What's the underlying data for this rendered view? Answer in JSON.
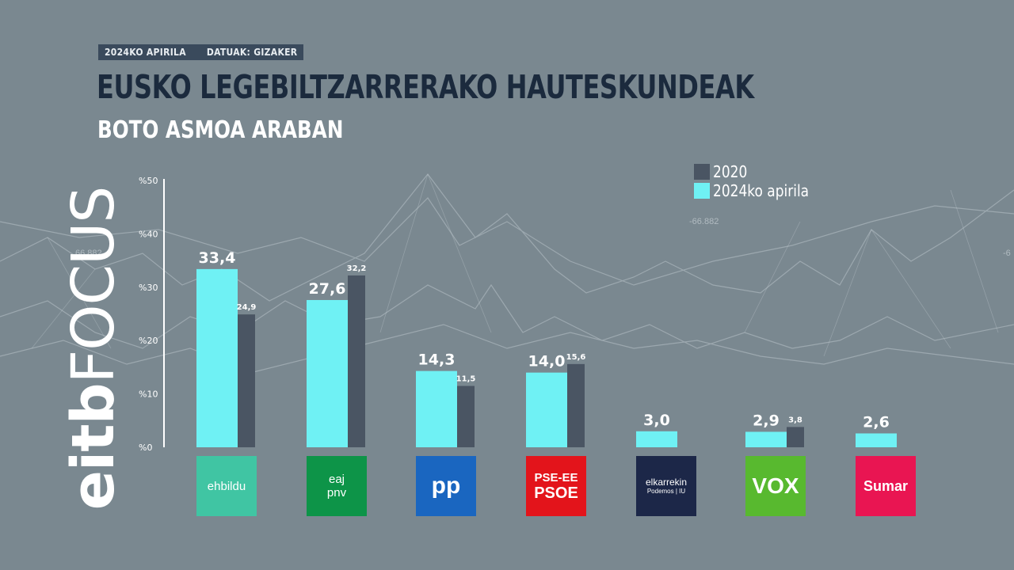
{
  "header": {
    "date_tag": "2024KO APIRILA",
    "source_tag": "DATUAK: GIZAKER",
    "title": "EUSKO LEGEBILTZARRERAKO HAUTESKUNDEAK",
    "subtitle": "BOTO ASMOA ARABAN"
  },
  "brand": {
    "part1": "eitb",
    "part2": "FOCUS"
  },
  "background": {
    "ticker_1": "66.882",
    "ticker_2": "-66.882",
    "ticker_3": "-6"
  },
  "colors": {
    "background": "#7a8890",
    "series_2024": "#6ff1f4",
    "series_2020": "#4a5563",
    "title": "#1b2a3d"
  },
  "logos": [
    {
      "party": "ehbildu",
      "lines": [
        "ehbildu"
      ],
      "bg": "#40c5a3",
      "icon": "ehbildu-logo"
    },
    {
      "party": "eaj-pnv",
      "lines": [
        "eaj",
        "pnv"
      ],
      "bg": "#0d9448",
      "icon": "eaj-pnv-logo"
    },
    {
      "party": "pp",
      "lines": [
        "pp"
      ],
      "bg": "#1a66c0",
      "icon": "pp-logo"
    },
    {
      "party": "pse-ee-psoe",
      "lines": [
        "PSE-EE",
        "PSOE"
      ],
      "bg": "#e3141b",
      "icon": "pse-psoe-logo"
    },
    {
      "party": "elkarrekin-podemos",
      "lines": [
        "elkarrekin",
        "Podemos | IU"
      ],
      "bg": "#1c2748",
      "icon": "elkarrekin-podemos-logo"
    },
    {
      "party": "vox",
      "lines": [
        "VOX"
      ],
      "bg": "#58b92f",
      "icon": "vox-logo"
    },
    {
      "party": "sumar",
      "lines": [
        "Sumar"
      ],
      "bg": "#e91552",
      "icon": "sumar-logo"
    }
  ],
  "chart_data": {
    "type": "bar",
    "categories": [
      "ehbildu",
      "eaj-pnv",
      "pp",
      "pse-ee-psoe",
      "elkarrekin-podemos",
      "vox",
      "sumar"
    ],
    "series": [
      {
        "name": "2024ko apirila",
        "values": [
          33.4,
          27.6,
          14.3,
          14.0,
          3.0,
          2.9,
          2.6
        ],
        "labels": [
          "33,4",
          "27,6",
          "14,3",
          "14,0",
          "3,0",
          "2,9",
          "2,6"
        ],
        "color": "#6ff1f4"
      },
      {
        "name": "2020",
        "values": [
          24.9,
          32.2,
          11.5,
          15.6,
          null,
          3.8,
          null
        ],
        "labels": [
          "24,9",
          "32,2",
          "11,5",
          "15,6",
          "",
          "3,8",
          ""
        ],
        "color": "#4a5563"
      }
    ],
    "ytick_labels": [
      "%0",
      "%10",
      "%20",
      "%30",
      "%40",
      "%50"
    ],
    "ytick_values": [
      0,
      10,
      20,
      30,
      40,
      50
    ],
    "ylim": [
      0,
      50
    ],
    "grid": false,
    "legend_position": "top-right"
  }
}
